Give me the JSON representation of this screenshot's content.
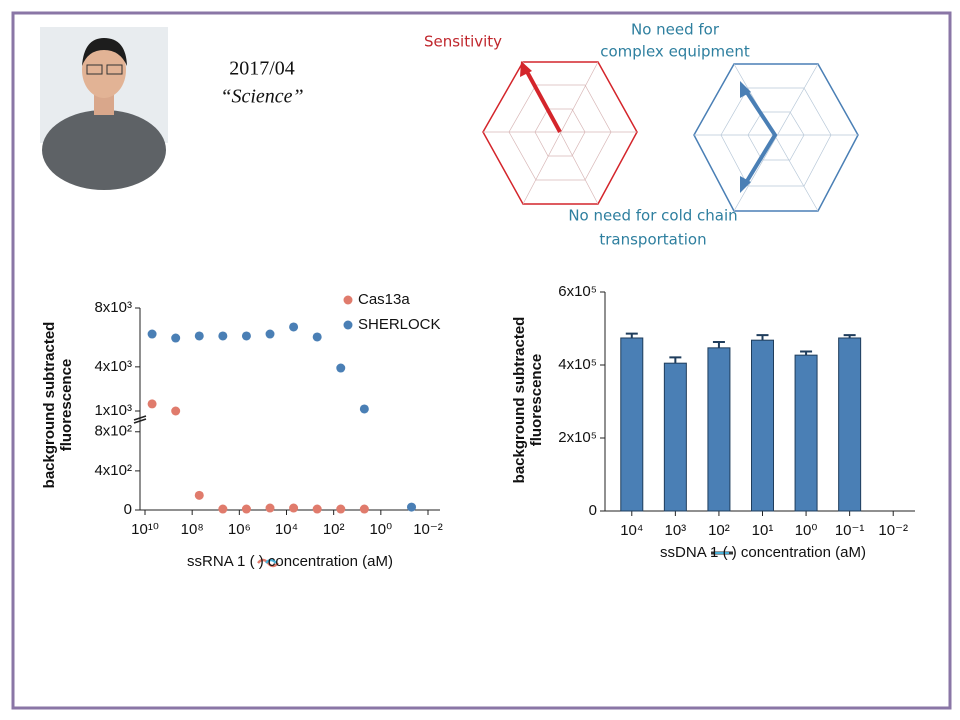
{
  "slide": {
    "date": "2017/04",
    "journal": "“Science”",
    "radar_labels": [
      "Sensitivity",
      "No need for",
      "complex equipment",
      "No need for cold chain",
      "transportation"
    ]
  },
  "chart_data": [
    {
      "type": "scatter",
      "ylabel": [
        "background subtracted",
        "fluorescence"
      ],
      "xlabel": "ssRNA 1 (      ) concentration (aM)",
      "xscale": "log",
      "xlim": [
        10000000000,
        0.01
      ],
      "xticks": [
        {
          "value": 10000000000,
          "label": "10¹⁰"
        },
        {
          "value": 100000000,
          "label": "10⁸"
        },
        {
          "value": 1000000,
          "label": "10⁶"
        },
        {
          "value": 10000,
          "label": "10⁴"
        },
        {
          "value": 100,
          "label": "10²"
        },
        {
          "value": 1,
          "label": "10⁰"
        },
        {
          "value": 0.01,
          "label": "10⁻²"
        }
      ],
      "ylim": [
        0,
        8000
      ],
      "ybreak": [
        900,
        1000
      ],
      "yticks": [
        0,
        {
          "value": 400,
          "label": "4x10²"
        },
        {
          "value": 800,
          "label": "8x10²"
        },
        {
          "value": 1000,
          "label": "1x10³"
        },
        {
          "value": 4000,
          "label": "4x10³"
        },
        {
          "value": 8000,
          "label": "8x10³"
        }
      ],
      "x": [
        5000000000,
        500000000,
        50000000,
        5000000,
        500000,
        50000,
        5000,
        500,
        50,
        5,
        0.05
      ],
      "series": [
        {
          "name": "Cas13a",
          "color": "#e07b6c",
          "values": [
            1480,
            1000,
            150,
            10,
            10,
            20,
            20,
            10,
            10,
            10,
            null
          ]
        },
        {
          "name": "SHERLOCK",
          "color": "#4a7fb5",
          "values": [
            6230,
            5960,
            6100,
            6100,
            6100,
            6230,
            6710,
            6030,
            3920,
            1140,
            30
          ]
        }
      ],
      "legend": "upper right"
    },
    {
      "type": "bar",
      "ylabel": [
        "background subtracted",
        "fluorescence"
      ],
      "xlabel": "ssDNA 1 (      ) concentration (aM)",
      "categories": [
        "10⁴",
        "10³",
        "10²",
        "10¹",
        "10⁰",
        "10⁻¹",
        "10⁻²"
      ],
      "values": [
        474000,
        405000,
        447000,
        468000,
        427000,
        474000,
        null
      ],
      "errors": [
        12000,
        16000,
        16000,
        14000,
        10000,
        8000,
        null
      ],
      "color": "#4a7fb5",
      "ylim": [
        0,
        600000
      ],
      "yticks": [
        0,
        {
          "value": 200000,
          "label": "2x10⁵"
        },
        {
          "value": 400000,
          "label": "4x10⁵"
        },
        {
          "value": 600000,
          "label": "6x10⁵"
        }
      ]
    }
  ]
}
